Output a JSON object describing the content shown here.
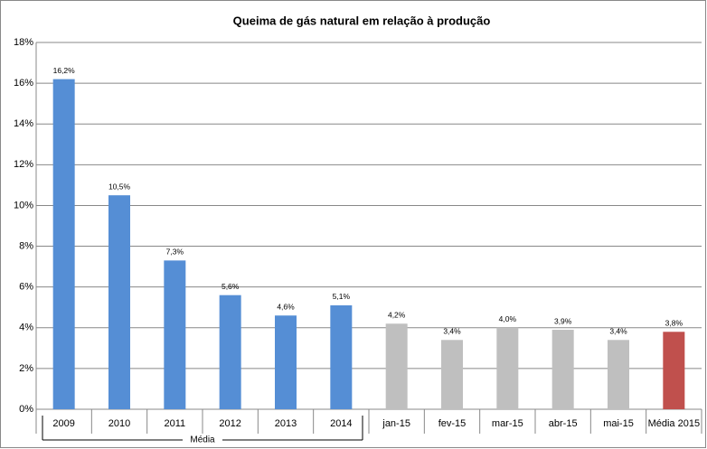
{
  "chart_data": {
    "type": "bar",
    "title": "Queima de gás natural  em relação à produção",
    "categories": [
      "2009",
      "2010",
      "2011",
      "2012",
      "2013",
      "2014",
      "jan-15",
      "fev-15",
      "mar-15",
      "abr-15",
      "mai-15",
      "Média 2015"
    ],
    "values": [
      16.2,
      10.5,
      7.3,
      5.6,
      4.6,
      5.1,
      4.2,
      3.4,
      4.0,
      3.9,
      3.4,
      3.8
    ],
    "value_labels": [
      "16,2%",
      "10,5%",
      "7,3%",
      "5,6%",
      "4,6%",
      "5,1%",
      "4,2%",
      "3,4%",
      "4,0%",
      "3,9%",
      "3,4%",
      "3,8%"
    ],
    "colors": [
      "#558ed5",
      "#558ed5",
      "#558ed5",
      "#558ed5",
      "#558ed5",
      "#558ed5",
      "#bfbfbf",
      "#bfbfbf",
      "#bfbfbf",
      "#bfbfbf",
      "#bfbfbf",
      "#c0504d"
    ],
    "group_label": "Média",
    "ylim": [
      0,
      18
    ],
    "yticks": [
      {
        "value": 0,
        "label": "0%"
      },
      {
        "value": 2,
        "label": "2%"
      },
      {
        "value": 4,
        "label": "4%"
      },
      {
        "value": 6,
        "label": "6%"
      },
      {
        "value": 8,
        "label": "8%"
      },
      {
        "value": 10,
        "label": "10%"
      },
      {
        "value": 12,
        "label": "12%"
      },
      {
        "value": 14,
        "label": "14%"
      },
      {
        "value": 16,
        "label": "16%"
      },
      {
        "value": 18,
        "label": "18%"
      }
    ],
    "grid": true
  }
}
